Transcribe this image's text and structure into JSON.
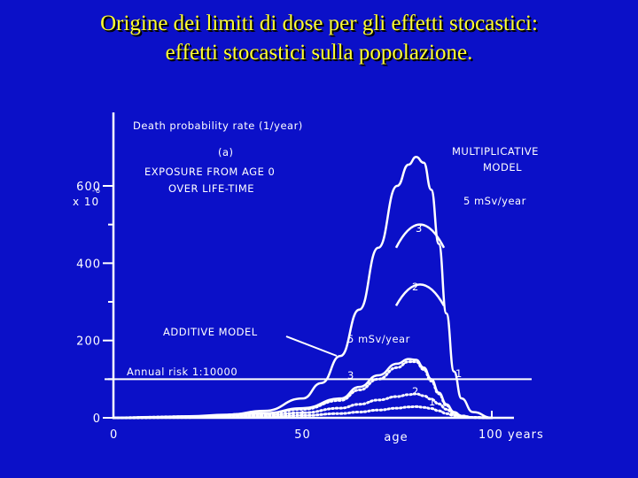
{
  "slide": {
    "title_line1": "Origine dei limiti di dose per gli effetti stocastici:",
    "title_line2": "effetti stocastici sulla popolazione."
  },
  "colors": {
    "background": "#0b10c8",
    "title": "#ffff33",
    "ink": "#ffffff"
  },
  "chart_data": {
    "type": "line",
    "title": "Death probability rate (1/year)",
    "panel": "(a)",
    "subtitle_lines": [
      "EXPOSURE FROM AGE 0",
      "OVER LIFE-TIME"
    ],
    "xlabel": "age",
    "x_tick_labels": [
      "0",
      "50",
      "100 years"
    ],
    "y_tick_labels": [
      "0",
      "200",
      "400",
      "600"
    ],
    "y_multiplier_label": {
      "base": "x 10",
      "exponent": "-6"
    },
    "xlim": [
      0,
      100
    ],
    "ylim": [
      0,
      700
    ],
    "annotations": {
      "multiplicative": [
        "MULTIPLICATIVE",
        "MODEL"
      ],
      "multiplicative_dose": "5 mSv/year",
      "additive": "ADDITIVE MODEL",
      "additive_dose": "5 mSv/year",
      "annual_risk": "Annual risk  1:10000",
      "mult_curve_3": "3",
      "mult_curve_2": "2",
      "add_label_3": "3",
      "add_label_2": "2",
      "add_label_1": "1",
      "add_label_1b": "1"
    },
    "annual_risk_level": 100,
    "series": [
      {
        "name": "MULTIPLICATIVE MODEL",
        "style": "solid",
        "x": [
          0,
          10,
          20,
          30,
          40,
          50,
          55,
          60,
          65,
          70,
          75,
          78,
          80,
          82,
          84,
          86,
          88,
          90,
          92,
          95,
          100
        ],
        "y": [
          0,
          2,
          4,
          8,
          18,
          50,
          90,
          160,
          280,
          440,
          600,
          655,
          675,
          660,
          590,
          450,
          270,
          120,
          50,
          15,
          0
        ]
      },
      {
        "name": "5 mSv/year",
        "style": "solid",
        "x": [
          0,
          20,
          40,
          50,
          60,
          65,
          70,
          75,
          78,
          80,
          82,
          84,
          86,
          88,
          90,
          92,
          95,
          100
        ],
        "y": [
          0,
          3,
          12,
          25,
          50,
          80,
          110,
          140,
          152,
          150,
          130,
          100,
          65,
          35,
          15,
          5,
          1,
          0
        ]
      },
      {
        "name": "3",
        "style": "dotted",
        "x": [
          0,
          20,
          40,
          50,
          60,
          65,
          70,
          75,
          78,
          80,
          82,
          84,
          86,
          88,
          90,
          92,
          95,
          100
        ],
        "y": [
          0,
          3,
          11,
          22,
          45,
          72,
          100,
          130,
          145,
          145,
          125,
          95,
          62,
          32,
          14,
          5,
          1,
          0
        ]
      },
      {
        "name": "2",
        "style": "dotted",
        "x": [
          0,
          20,
          40,
          50,
          60,
          65,
          70,
          75,
          78,
          80,
          82,
          84,
          86,
          88,
          90,
          92,
          95,
          100
        ],
        "y": [
          0,
          2,
          7,
          13,
          25,
          35,
          46,
          55,
          60,
          62,
          57,
          48,
          36,
          22,
          10,
          4,
          1,
          0
        ]
      },
      {
        "name": "1",
        "style": "dotted",
        "x": [
          0,
          20,
          40,
          50,
          60,
          65,
          70,
          75,
          78,
          80,
          82,
          84,
          86,
          88,
          90,
          92,
          95,
          100
        ],
        "y": [
          0,
          1,
          3,
          6,
          11,
          15,
          20,
          25,
          28,
          29,
          27,
          24,
          18,
          11,
          6,
          2,
          1,
          0
        ]
      }
    ],
    "additive_model_pointer": true,
    "legend_bumps": [
      {
        "label": "3",
        "peak_value": 500,
        "base_value": 440
      },
      {
        "label": "2",
        "peak_value": 345,
        "base_value": 290
      }
    ]
  }
}
